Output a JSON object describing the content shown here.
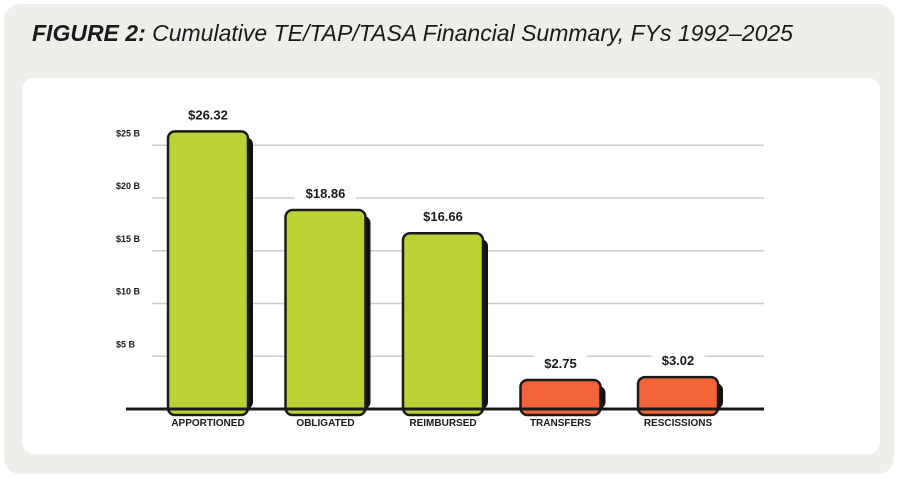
{
  "figure": {
    "label": "FIGURE 2:",
    "caption": "Cumulative TE/TAP/TASA Financial Summary, FYs 1992–2025"
  },
  "chart_data": {
    "type": "bar",
    "categories": [
      "APPORTIONED",
      "OBLIGATED",
      "REIMBURSED",
      "TRANSFERS",
      "RESCISSIONS"
    ],
    "values": [
      26.32,
      18.86,
      16.66,
      2.75,
      3.02
    ],
    "value_labels": [
      "$26.32",
      "$18.86",
      "$16.66",
      "$2.75",
      "$3.02"
    ],
    "bar_colors": [
      "#bcd135",
      "#bcd135",
      "#bcd135",
      "#f26338",
      "#f26338"
    ],
    "yticks": [
      5,
      10,
      15,
      20,
      25
    ],
    "ytick_labels": [
      "$5 B",
      "$10 B",
      "$15 B",
      "$20 B",
      "$25 B"
    ],
    "ylim": [
      0,
      27
    ],
    "grid": true,
    "title": "Cumulative TE/TAP/TASA Financial Summary, FYs 1992–2025",
    "xlabel": "",
    "ylabel": ""
  },
  "colors": {
    "background": "#efeeea",
    "panel": "#ffffff",
    "gridline": "#cfcdc6",
    "outline": "#1a1a1a"
  }
}
